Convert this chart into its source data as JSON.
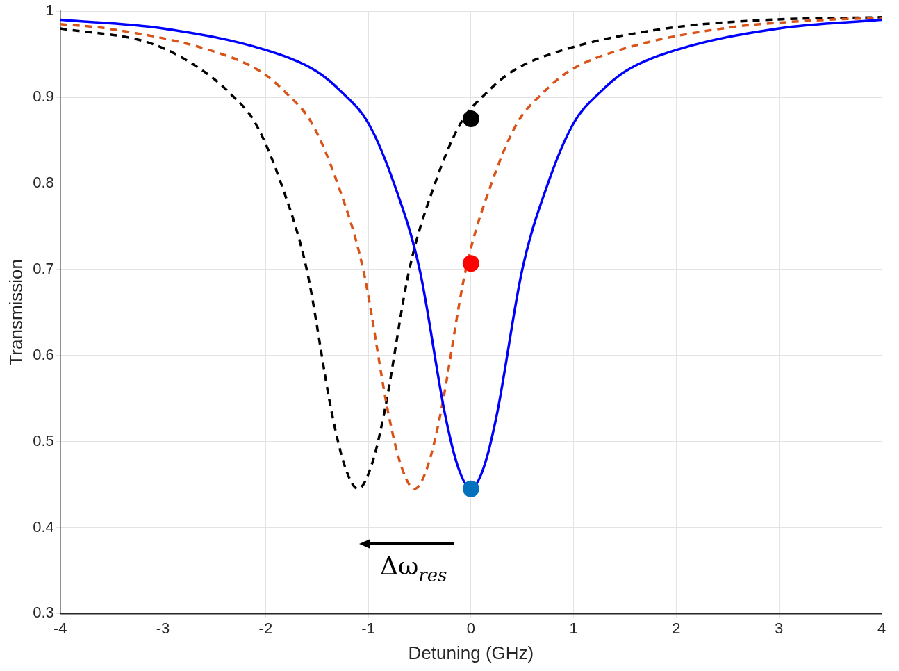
{
  "chart_data": {
    "type": "line",
    "xlabel": "Detuning (GHz)",
    "ylabel": "Transmission",
    "xlim": [
      -4,
      4
    ],
    "xticks": [
      -4,
      -3,
      -2,
      -1,
      0,
      1,
      2,
      3,
      4
    ],
    "ylim": [
      0.3,
      1
    ],
    "yticks": [
      0.3,
      0.4,
      0.5,
      0.6,
      0.7,
      0.8,
      0.9,
      1
    ],
    "grid": true,
    "legend": false,
    "series": [
      {
        "color": "#0000ff",
        "line_style": "solid",
        "marker": "none",
        "x": [
          -4,
          -3,
          -2,
          -1.5,
          -1.25,
          -1,
          -0.75,
          -0.5,
          -0.25,
          -0.125,
          0,
          0.125,
          0.25,
          0.5,
          0.75,
          1,
          1.25,
          1.5,
          2,
          3,
          4
        ],
        "values": [
          0.99,
          0.98,
          0.955,
          0.93,
          0.905,
          0.87,
          0.8,
          0.7,
          0.53,
          0.47,
          0.445,
          0.47,
          0.53,
          0.7,
          0.8,
          0.87,
          0.905,
          0.93,
          0.955,
          0.98,
          0.99
        ]
      },
      {
        "color": "#d95319",
        "line_style": "dashed",
        "marker": "none",
        "x": [
          -4,
          -3.55,
          -2.55,
          -2.05,
          -1.8,
          -1.55,
          -1.3,
          -1.05,
          -0.8,
          -0.675,
          -0.55,
          -0.425,
          -0.3,
          -0.05,
          0.2,
          0.45,
          0.7,
          0.95,
          1.45,
          2.45,
          3.45,
          4
        ],
        "values": [
          0.985,
          0.98,
          0.955,
          0.93,
          0.905,
          0.87,
          0.8,
          0.7,
          0.53,
          0.47,
          0.445,
          0.47,
          0.53,
          0.7,
          0.8,
          0.87,
          0.905,
          0.93,
          0.955,
          0.98,
          0.99,
          0.992
        ]
      },
      {
        "color": "#000000",
        "line_style": "dashed",
        "marker": "none",
        "x": [
          -4,
          -3.1,
          -2.6,
          -2.35,
          -2.1,
          -1.85,
          -1.6,
          -1.35,
          -1.225,
          -1.1,
          -0.975,
          -0.85,
          -0.6,
          -0.35,
          -0.1,
          0.15,
          0.4,
          0.9,
          1.9,
          2.9,
          4
        ],
        "values": [
          0.98,
          0.962,
          0.93,
          0.905,
          0.87,
          0.8,
          0.7,
          0.53,
          0.47,
          0.445,
          0.47,
          0.53,
          0.7,
          0.8,
          0.87,
          0.905,
          0.93,
          0.955,
          0.98,
          0.99,
          0.993
        ]
      },
      {
        "type": "scatter",
        "marker": "circle",
        "x": [
          0,
          0,
          0
        ],
        "values": [
          0.875,
          0.707,
          0.445
        ],
        "colors": [
          "#000000",
          "#ff0000",
          "#0072bd"
        ]
      }
    ],
    "annotations": [
      "Δω$_{res}$"
    ]
  }
}
